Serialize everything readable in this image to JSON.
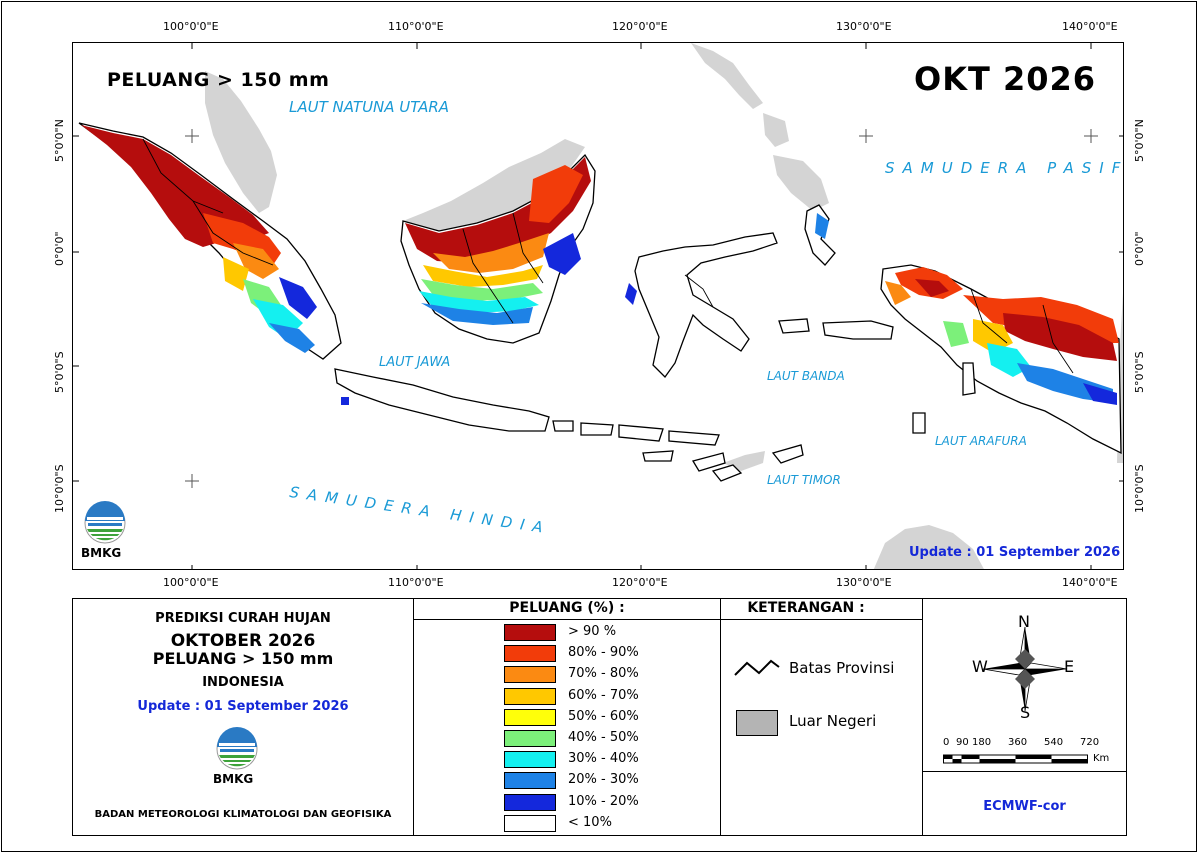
{
  "map": {
    "title": "PELUANG > 150 mm",
    "month_label": "OKT 2026",
    "update": "Update : 01 September  2026",
    "logo_text": "BMKG",
    "longitude_ticks": [
      "100°0'0\"E",
      "110°0'0\"E",
      "120°0'0\"E",
      "130°0'0\"E",
      "140°0'0\"E"
    ],
    "latitude_ticks": [
      "5°0'0\"N",
      "0°0'0\"",
      "5°0'0\"S",
      "10°0'0\"S"
    ],
    "sea_labels": {
      "natuna": "LAUT NATUNA UTARA",
      "pasifik": "SAMUDERA PASIFIK",
      "jawa": "LAUT JAWA",
      "banda": "LAUT BANDA",
      "arafura": "LAUT ARAFURA",
      "timor": "LAUT TIMOR",
      "hindia": "SAMUDERA HINDIA"
    }
  },
  "info": {
    "line1": "PREDIKSI CURAH HUJAN",
    "line2": "OKTOBER 2026",
    "line3": "PELUANG > 150 mm",
    "line4": "INDONESIA",
    "update": "Update : 01 September  2026",
    "logo_text": "BMKG",
    "agency": "BADAN METEOROLOGI KLIMATOLOGI DAN GEOFISIKA"
  },
  "legend": {
    "header": "PELUANG (%) :",
    "items": [
      {
        "label": "> 90 %",
        "color": "#b50d0d"
      },
      {
        "label": "80% - 90%",
        "color": "#f23c0a"
      },
      {
        "label": "70% - 80%",
        "color": "#fb8a12"
      },
      {
        "label": "60% - 70%",
        "color": "#ffc800"
      },
      {
        "label": "50% - 60%",
        "color": "#ffff0a"
      },
      {
        "label": "40% - 50%",
        "color": "#7cf07a"
      },
      {
        "label": "30% - 40%",
        "color": "#14f0f0"
      },
      {
        "label": "20% - 30%",
        "color": "#1e82e6"
      },
      {
        "label": "10% - 20%",
        "color": "#1428dc"
      },
      {
        "label": "< 10%",
        "color": "#ffffff"
      }
    ]
  },
  "keterangan": {
    "header": "KETERANGAN :",
    "batas": "Batas Provinsi",
    "luar": "Luar Negeri",
    "luar_color": "#b4b4b4"
  },
  "compass": {
    "n": "N",
    "s": "S",
    "e": "E",
    "w": "W"
  },
  "scale": {
    "labels": [
      "0",
      "90",
      "180",
      "360",
      "540",
      "720"
    ],
    "unit": "Km"
  },
  "source": "ECMWF-cor",
  "colors": {
    "sea_text": "#1a9ad6",
    "update_text": "#1428d8",
    "foreign_land": "#d4d4d4"
  }
}
